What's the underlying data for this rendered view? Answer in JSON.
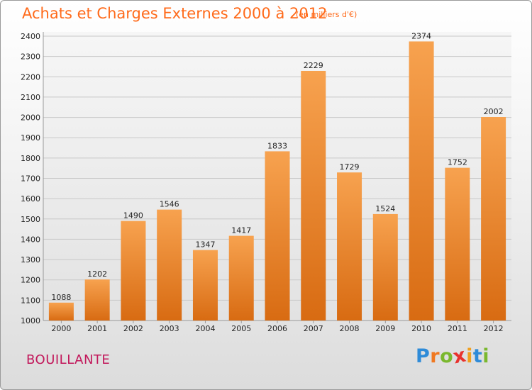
{
  "header": {
    "title": "Achats et Charges Externes 2000 à 2012",
    "subtitle": "(en milliers d'€)"
  },
  "footer": {
    "town": "BOUILLANTE",
    "logo": {
      "letters": [
        "P",
        "r",
        "o",
        "x",
        "i",
        "t",
        "i"
      ],
      "colors": [
        "#2e8bd8",
        "#f07820",
        "#7ab82e",
        "#e8322d",
        "#f0a020",
        "#2e8bd8",
        "#7ab82e"
      ]
    }
  },
  "chart_data": {
    "type": "bar",
    "title": "Achats et Charges Externes 2000 à 2012",
    "subtitle": "(en milliers d'€)",
    "categories": [
      "2000",
      "2001",
      "2002",
      "2003",
      "2004",
      "2005",
      "2006",
      "2007",
      "2008",
      "2009",
      "2010",
      "2011",
      "2012"
    ],
    "values": [
      1088,
      1202,
      1490,
      1546,
      1347,
      1417,
      1833,
      2229,
      1729,
      1524,
      2374,
      1752,
      2002
    ],
    "ylim": [
      1000,
      2400
    ],
    "yticks": [
      1000,
      1100,
      1200,
      1300,
      1400,
      1500,
      1600,
      1700,
      1800,
      1900,
      2000,
      2100,
      2200,
      2300,
      2400
    ],
    "grid": true,
    "bar_color_top": "#f7a24f",
    "bar_color_bottom": "#d86b12"
  }
}
